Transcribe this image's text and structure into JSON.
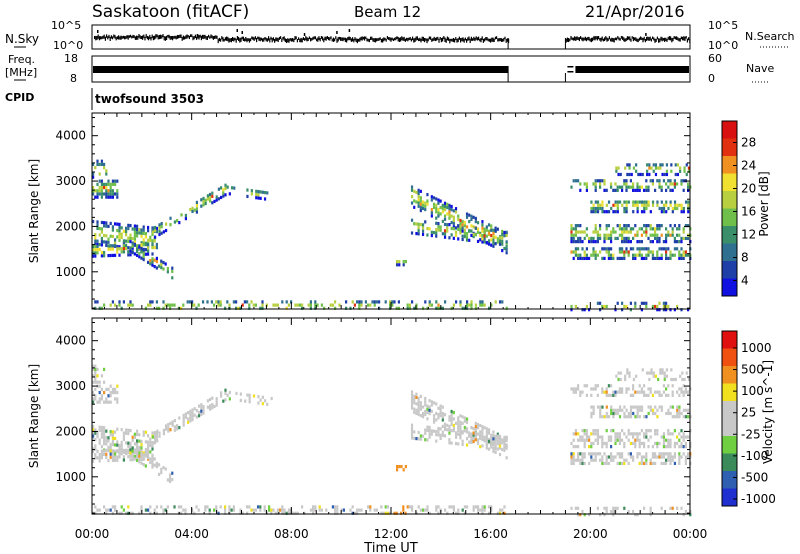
{
  "header": {
    "site": "Saskatoon (fitACF)",
    "beam": "Beam 12",
    "date": "21/Apr/2016"
  },
  "noise_panel": {
    "left_label": "N.Sky",
    "right_label": "N.Search",
    "left_ticks": [
      "10^5",
      "10^0"
    ],
    "right_ticks": [
      "10^5",
      "10^0"
    ]
  },
  "freq_panel": {
    "left_label_1": "Freq.",
    "left_label_2": "[MHz]",
    "left_ticks": [
      "18",
      "8"
    ],
    "right_label": "Nave",
    "right_ticks": [
      "60",
      "0"
    ]
  },
  "cpid_panel": {
    "label": "CPID",
    "program": "twofsound 3503"
  },
  "x_axis": {
    "label": "Time UT",
    "ticks": [
      "00:00",
      "04:00",
      "08:00",
      "12:00",
      "16:00",
      "20:00",
      "00:00"
    ]
  },
  "colors": {
    "power": [
      "#1010e0",
      "#1f3fa8",
      "#2f6f8f",
      "#3a8f6a",
      "#6fbf4a",
      "#b8d040",
      "#f0e030",
      "#f09020",
      "#e03010",
      "#d81010"
    ],
    "velocity": [
      "#2030d0",
      "#2f5fb0",
      "#3a8a5a",
      "#6fcf40",
      "#c8c8c8",
      "#c8c8c8",
      "#f0e020",
      "#f09020",
      "#f05010",
      "#e01010"
    ]
  },
  "chart_data": [
    {
      "type": "heatmap",
      "name": "power",
      "xlabel": "Time UT",
      "ylabel": "Slant Range [km]",
      "xlim": [
        0,
        24
      ],
      "ylim": [
        180,
        4500
      ],
      "yticks": [
        1000,
        2000,
        3000,
        4000
      ],
      "colorbar_label": "Power [dB]",
      "colorbar_ticks": [
        "28",
        "24",
        "20",
        "16",
        "12",
        "8",
        "4"
      ],
      "colorbar_range": [
        0,
        30
      ],
      "data_gap_hours": [
        16.7,
        19.0
      ]
    },
    {
      "type": "heatmap",
      "name": "velocity",
      "xlabel": "Time UT",
      "ylabel": "Slant Range [km]",
      "xlim": [
        0,
        24
      ],
      "ylim": [
        180,
        4500
      ],
      "yticks": [
        1000,
        2000,
        3000,
        4000
      ],
      "colorbar_label": "Velocity [m s^-1]",
      "colorbar_ticks": [
        "1000",
        "500",
        "100",
        "25",
        "-25",
        "-100",
        "-500",
        "-1000"
      ],
      "colorbar_range": [
        -1000,
        1000
      ],
      "data_gap_hours": [
        16.7,
        19.0
      ]
    }
  ]
}
